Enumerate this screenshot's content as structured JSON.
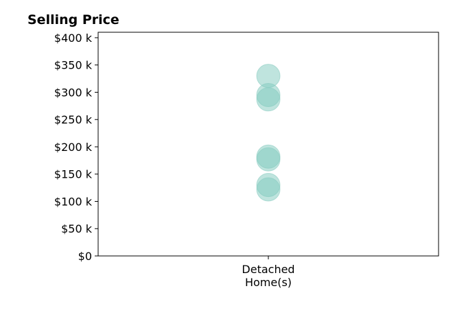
{
  "chart_data": {
    "type": "scatter",
    "title": "Selling Price",
    "xlabel": "",
    "ylabel": "",
    "categories": [
      {
        "lines": [
          "Detached",
          "Home(s)"
        ]
      }
    ],
    "series": [
      {
        "category_index": 0,
        "values": [
          330000,
          295000,
          287000,
          182000,
          177000,
          130000,
          122000
        ]
      }
    ],
    "ylim": [
      0,
      410000
    ],
    "yticks": [
      {
        "value": 0,
        "label": "$0"
      },
      {
        "value": 50000,
        "label": "$50 k"
      },
      {
        "value": 100000,
        "label": "$100 k"
      },
      {
        "value": 150000,
        "label": "$150 k"
      },
      {
        "value": 200000,
        "label": "$200 k"
      },
      {
        "value": 250000,
        "label": "$250 k"
      },
      {
        "value": 300000,
        "label": "$300 k"
      },
      {
        "value": 350000,
        "label": "$350 k"
      },
      {
        "value": 400000,
        "label": "$400 k"
      }
    ],
    "marker_color": "#7fc9bd",
    "marker_edge_color": "#8bcdc2",
    "grid": false,
    "legend": "none"
  }
}
